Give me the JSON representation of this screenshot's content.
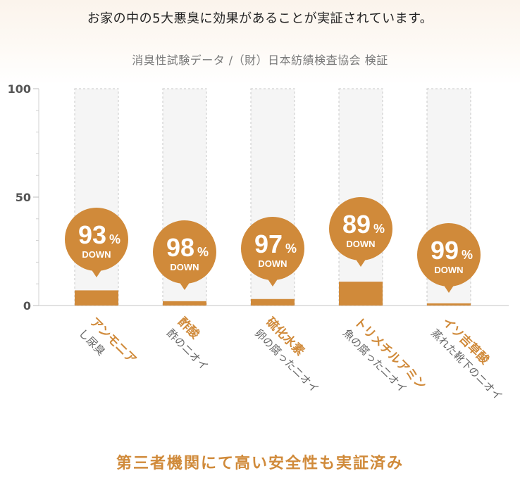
{
  "header": {
    "headline": "お家の中の5大悪臭に効果があることが実証されています。",
    "subtitle": "消臭性試験データ /（財）日本紡績検査協会 検証"
  },
  "footer": {
    "text": "第三者機関にて高い安全性も実証済み"
  },
  "colors": {
    "accent": "#d08a3a",
    "bar_fill": "#d08a3a",
    "bar_track": "#f5f5f5",
    "track_border": "#c8c8c8",
    "axis_text": "#555555",
    "sub_label": "#666666"
  },
  "chart_data": {
    "type": "bar",
    "title": "消臭性試験データ /（財）日本紡績検査協会 検証",
    "ylim": [
      0,
      100
    ],
    "yticks": [
      0,
      50,
      100
    ],
    "grid": false,
    "categories": [
      "アンモニア",
      "酢酸",
      "硫化水素",
      "トリメチルアミン",
      "イソ吉草酸"
    ],
    "sublabels": [
      "し尿臭",
      "酢のニオイ",
      "卵の腐ったニオイ",
      "魚の腐ったニオイ",
      "蒸れた靴下のニオイ"
    ],
    "values": [
      7,
      2,
      3,
      11,
      1
    ],
    "badges": [
      {
        "value": "93",
        "unit": "%",
        "label": "DOWN"
      },
      {
        "value": "98",
        "unit": "%",
        "label": "DOWN"
      },
      {
        "value": "97",
        "unit": "%",
        "label": "DOWN"
      },
      {
        "value": "89",
        "unit": "%",
        "label": "DOWN"
      },
      {
        "value": "99",
        "unit": "%",
        "label": "DOWN"
      }
    ]
  }
}
